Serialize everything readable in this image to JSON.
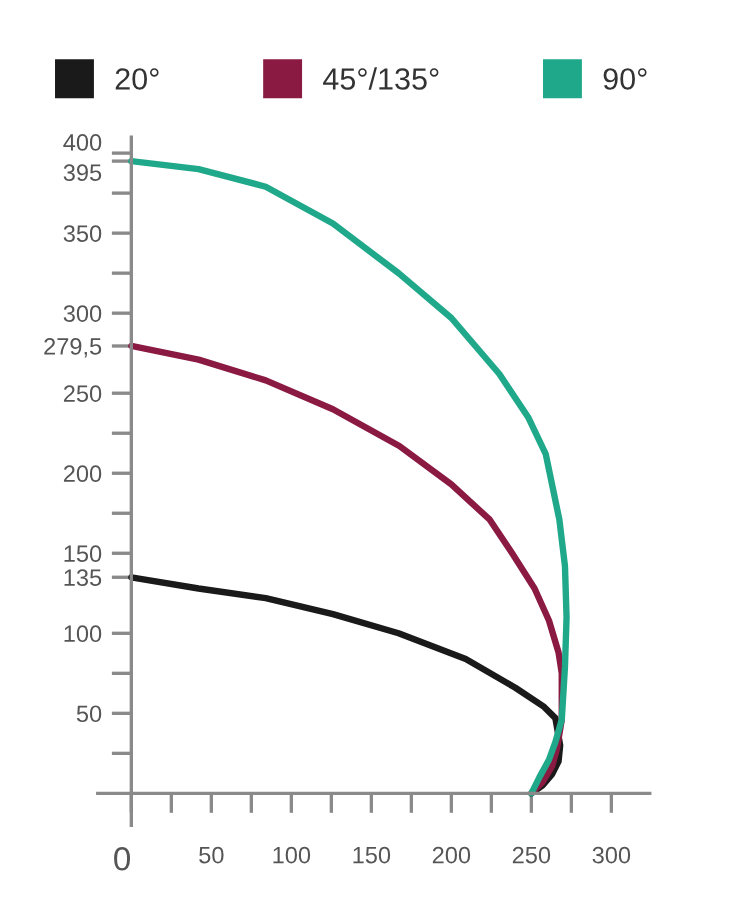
{
  "chart_data": {
    "type": "line",
    "series": [
      {
        "name": "20°",
        "color": "#1a1a1a",
        "x": [
          0,
          42,
          84,
          126,
          167,
          209,
          240,
          258,
          265,
          268,
          267,
          263,
          257,
          250
        ],
        "values": [
          135,
          128,
          122,
          112,
          100,
          84,
          66,
          54,
          47,
          30,
          20,
          12,
          5,
          0
        ]
      },
      {
        "name": "45°/135°",
        "color": "#8b1a42",
        "x": [
          0,
          42,
          84,
          126,
          167.5,
          200,
          224,
          238,
          252,
          261,
          267,
          269,
          269,
          266,
          263,
          257,
          250
        ],
        "values": [
          279.5,
          271,
          258,
          240,
          217,
          193,
          171,
          150,
          128,
          108,
          88,
          75,
          46,
          28,
          17,
          7,
          0
        ]
      },
      {
        "name": "90°",
        "color": "#1fa88a",
        "x": [
          0,
          42,
          84,
          126,
          167,
          200,
          230,
          248,
          259,
          267.5,
          271,
          272,
          271,
          269,
          265,
          261,
          255,
          250
        ],
        "values": [
          395,
          390,
          379,
          356,
          325,
          297,
          262,
          235,
          212,
          171,
          142,
          110,
          79,
          46,
          32,
          21,
          10,
          0
        ]
      }
    ],
    "xlim": [
      -21,
      324
    ],
    "ylim": [
      -20,
      410
    ],
    "xticks": [
      {
        "value": 0,
        "label": "0"
      },
      {
        "value": 25,
        "label": null
      },
      50,
      {
        "value": 75,
        "label": null
      },
      100,
      {
        "value": 125,
        "label": null
      },
      150,
      {
        "value": 175,
        "label": null
      },
      200,
      {
        "value": 225,
        "label": null
      },
      250,
      {
        "value": 275,
        "label": null
      },
      300
    ],
    "yticks": [
      {
        "value": 25,
        "label": null
      },
      50,
      {
        "value": 75,
        "label": null
      },
      100,
      {
        "value": 135,
        "label": "135"
      },
      150,
      {
        "value": 175,
        "label": null
      },
      200,
      {
        "value": 225,
        "label": null
      },
      250,
      {
        "value": 279.5,
        "label": "279,5"
      },
      300,
      {
        "value": 325,
        "label": null
      },
      350,
      {
        "value": 375,
        "label": null
      },
      {
        "value": 395,
        "label": "395"
      },
      400
    ],
    "legend": "top",
    "grid": false,
    "marker": "none",
    "line_style": "solid"
  }
}
